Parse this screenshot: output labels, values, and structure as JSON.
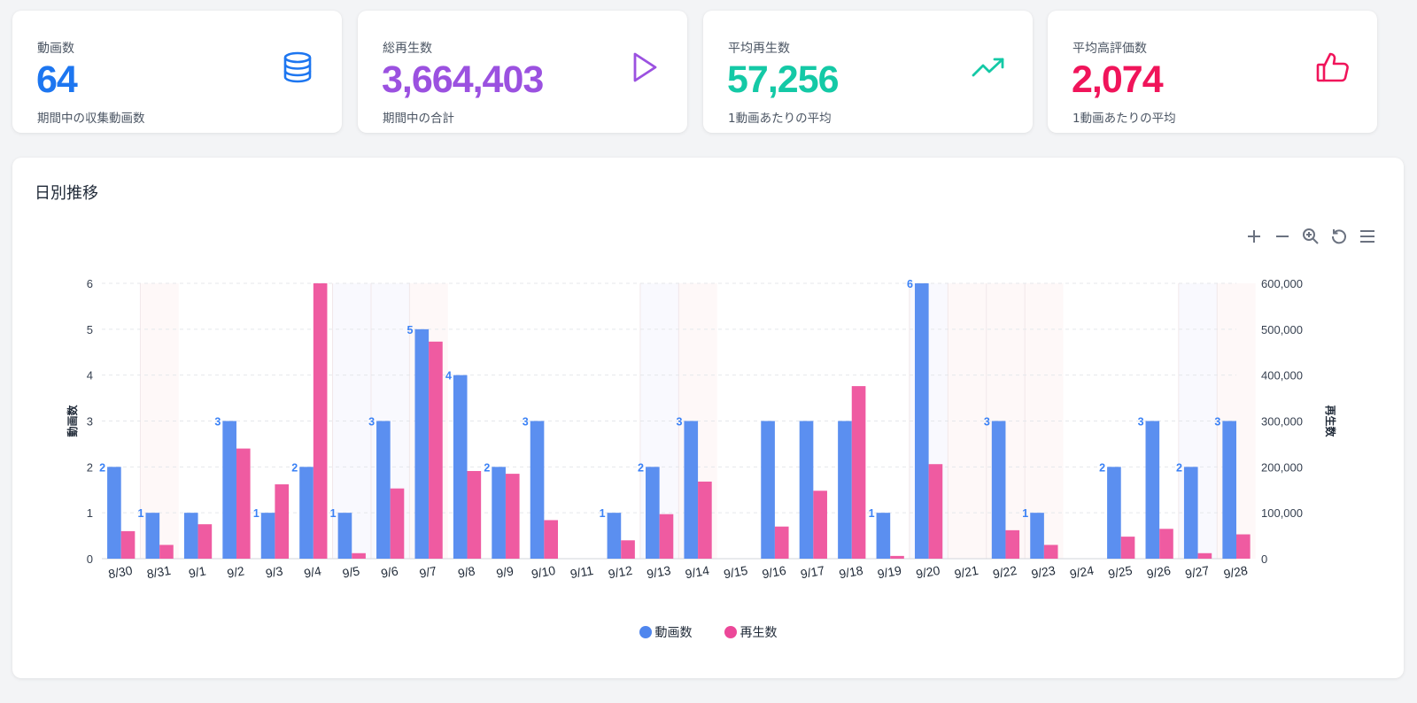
{
  "stats": [
    {
      "label": "動画数",
      "value": "64",
      "sub": "期間中の収集動画数",
      "color": "#1d76f0"
    },
    {
      "label": "総再生数",
      "value": "3,664,403",
      "sub": "期間中の合計",
      "color": "#9b51e0"
    },
    {
      "label": "平均再生数",
      "value": "57,256",
      "sub": "1動画あたりの平均",
      "color": "#14c9a6"
    },
    {
      "label": "平均高評価数",
      "value": "2,074",
      "sub": "1動画あたりの平均",
      "color": "#f0145a"
    }
  ],
  "icons": [
    "database-icon",
    "play-icon",
    "trending-up-icon",
    "thumbs-up-icon"
  ],
  "chart_title": "日別推移",
  "toolbar": [
    "zoom-in-icon",
    "zoom-out-icon",
    "selection-zoom-icon",
    "reset-icon",
    "menu-icon"
  ],
  "chart_data": {
    "type": "bar",
    "categories": [
      "8/30",
      "8/31",
      "9/1",
      "9/2",
      "9/3",
      "9/4",
      "9/5",
      "9/6",
      "9/7",
      "9/8",
      "9/9",
      "9/10",
      "9/11",
      "9/12",
      "9/13",
      "9/14",
      "9/15",
      "9/16",
      "9/17",
      "9/18",
      "9/19",
      "9/20",
      "9/21",
      "9/22",
      "9/23",
      "9/24",
      "9/25",
      "9/26",
      "9/27",
      "9/28"
    ],
    "series": [
      {
        "name": "動画数",
        "axis": "left",
        "color": "#5b8ff0",
        "values": [
          2,
          1,
          1,
          3,
          1,
          2,
          1,
          3,
          5,
          4,
          2,
          3,
          0,
          1,
          2,
          3,
          0,
          3,
          3,
          3,
          1,
          6,
          0,
          3,
          1,
          0,
          2,
          3,
          2,
          3
        ],
        "data_labels": [
          "2",
          "1",
          "",
          "3",
          "1",
          "2",
          "1",
          "3",
          "5",
          "4",
          "2",
          "3",
          "",
          "1",
          "2",
          "3",
          "",
          "",
          "",
          "",
          "1",
          "6",
          "",
          "3",
          "1",
          "",
          "2",
          "3",
          "2",
          "3"
        ]
      },
      {
        "name": "再生数",
        "axis": "right",
        "color": "#ef5ba1",
        "values": [
          60000,
          30000,
          75000,
          240000,
          162000,
          600000,
          12000,
          153000,
          473000,
          191000,
          185000,
          84000,
          0,
          40000,
          97000,
          168000,
          0,
          70000,
          148000,
          376000,
          6000,
          206000,
          0,
          62000,
          30000,
          0,
          48000,
          65000,
          12000,
          53000
        ]
      }
    ],
    "ylabel": "動画数",
    "y2label": "再生数",
    "ylim": [
      0,
      6
    ],
    "y2lim": [
      0,
      600000
    ],
    "yticks": [
      "0",
      "1",
      "2",
      "3",
      "4",
      "5",
      "6"
    ],
    "y2ticks": [
      "0",
      "100,000",
      "200,000",
      "300,000",
      "400,000",
      "500,000",
      "600,000"
    ],
    "highlight_days": {
      "weekend_sat": [
        "9/6",
        "9/13",
        "9/20",
        "9/27",
        "9/5"
      ],
      "weekend_sun": [
        "8/31",
        "9/7",
        "9/14",
        "9/21",
        "9/22",
        "9/23",
        "9/28"
      ]
    },
    "grid": true,
    "legend": "bottom-center"
  },
  "legend": [
    {
      "name": "動画数",
      "color": "#4f86ee"
    },
    {
      "name": "再生数",
      "color": "#ec4899"
    }
  ]
}
